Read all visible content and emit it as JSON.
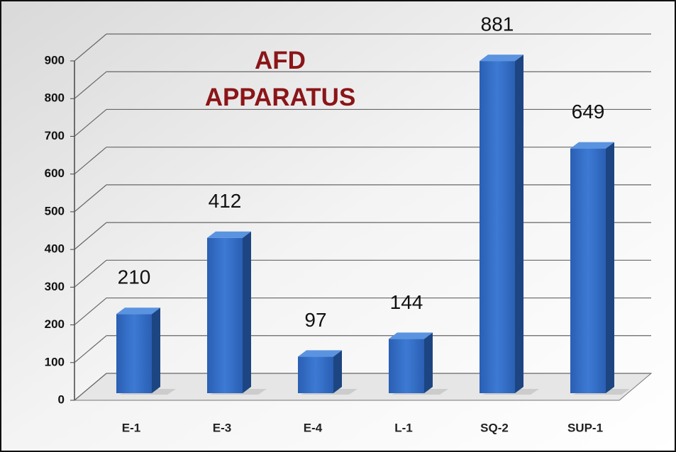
{
  "chart_data": {
    "type": "bar3d",
    "title": "AFD APPARATUS",
    "categories": [
      "E-1",
      "E-3",
      "E-4",
      "L-1",
      "SQ-2",
      "SUP-1"
    ],
    "values": [
      210,
      412,
      97,
      144,
      881,
      649
    ],
    "color": "#2f6bc4",
    "ylim": [
      0,
      900
    ],
    "yticks": [
      0,
      100,
      200,
      300,
      400,
      500,
      600,
      700,
      800,
      900
    ],
    "grid": true
  }
}
